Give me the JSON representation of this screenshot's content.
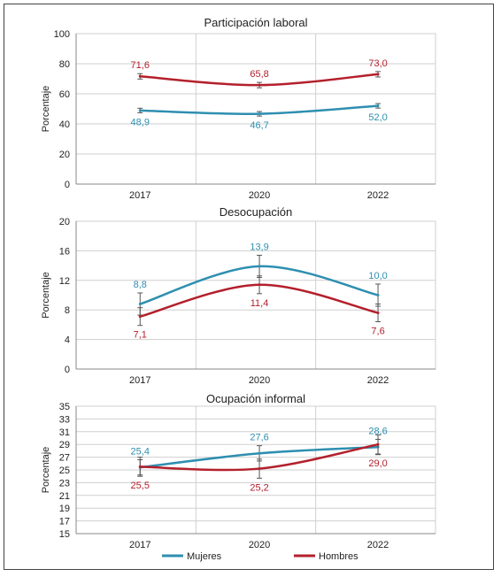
{
  "colors": {
    "mujeres": "#2e8fb0",
    "hombres": "#b3202c",
    "grid": "#cfcfcf",
    "axis": "#333333",
    "text": "#222222"
  },
  "legend": {
    "placement": "bottom-center"
  },
  "chart_data": [
    {
      "type": "line",
      "title": "Participación laboral",
      "ylabel": "Porcentaje",
      "xlabel": "",
      "categories": [
        "2017",
        "2020",
        "2022"
      ],
      "ylim": [
        0,
        100
      ],
      "yticks": [
        0,
        20,
        40,
        60,
        80,
        100
      ],
      "series": [
        {
          "name": "Mujeres",
          "values": [
            48.9,
            46.7,
            52.0
          ],
          "labels": [
            "48,9",
            "46,7",
            "52,0"
          ],
          "error": [
            1.5,
            1.5,
            1.5
          ],
          "label_pos": "below"
        },
        {
          "name": "Hombres",
          "values": [
            71.6,
            65.8,
            73.0
          ],
          "labels": [
            "71,6",
            "65,8",
            "73,0"
          ],
          "error": [
            1.8,
            1.8,
            1.8
          ],
          "label_pos": "above"
        }
      ]
    },
    {
      "type": "line",
      "title": "Desocupación",
      "ylabel": "Porcentaje",
      "xlabel": "",
      "categories": [
        "2017",
        "2020",
        "2022"
      ],
      "ylim": [
        0,
        20
      ],
      "yticks": [
        0,
        4,
        8,
        12,
        16,
        20
      ],
      "series": [
        {
          "name": "Mujeres",
          "values": [
            8.8,
            13.9,
            10.0
          ],
          "labels": [
            "8,8",
            "13,9",
            "10,0"
          ],
          "error": [
            1.5,
            1.5,
            1.5
          ],
          "label_pos": "above"
        },
        {
          "name": "Hombres",
          "values": [
            7.1,
            11.4,
            7.6
          ],
          "labels": [
            "7,1",
            "11,4",
            "7,6"
          ],
          "error": [
            1.2,
            1.2,
            1.2
          ],
          "label_pos": "below"
        }
      ]
    },
    {
      "type": "line",
      "title": "Ocupación informal",
      "ylabel": "Porcentaje",
      "xlabel": "",
      "categories": [
        "2017",
        "2020",
        "2022"
      ],
      "ylim": [
        15,
        35
      ],
      "yticks": [
        15,
        17,
        19,
        21,
        23,
        25,
        27,
        29,
        31,
        33,
        35
      ],
      "series": [
        {
          "name": "Mujeres",
          "values": [
            25.4,
            27.6,
            28.6
          ],
          "labels": [
            "25,4",
            "27,6",
            "28,6"
          ],
          "error": [
            1.2,
            1.2,
            1.2
          ],
          "label_pos": "above"
        },
        {
          "name": "Hombres",
          "values": [
            25.5,
            25.2,
            29.0
          ],
          "labels": [
            "25,5",
            "25,2",
            "29,0"
          ],
          "error": [
            1.5,
            1.5,
            1.5
          ],
          "label_pos": "below"
        }
      ]
    }
  ]
}
